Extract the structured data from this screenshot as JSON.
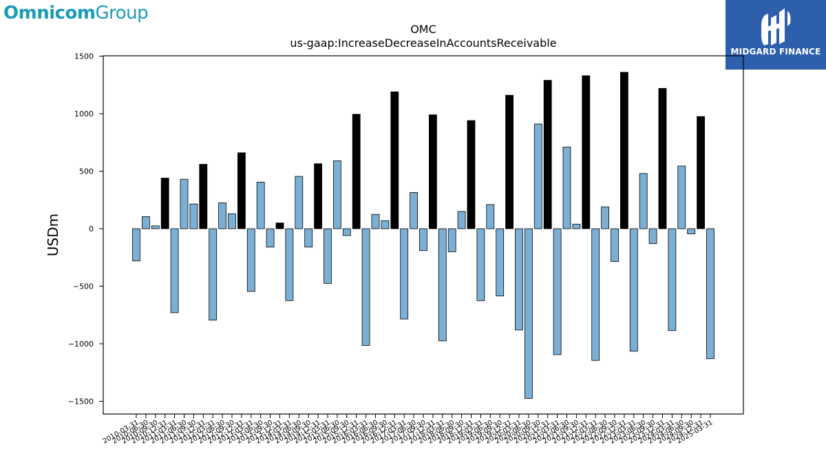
{
  "header": {
    "brand_left_strong": "Omnicom",
    "brand_left_light": "Group",
    "brand_right": "MIDGARD FINANCE",
    "brand_left_icon": "omnicom-wordmark",
    "brand_right_icon": "midgard-mark-icon"
  },
  "colors": {
    "bar_default": "#7bafd4",
    "bar_highlight": "#000000",
    "brand_left": "#1a9bb8",
    "brand_right_bg": "#2e5fad"
  },
  "chart_data": {
    "type": "bar",
    "title": "OMC",
    "subtitle": "us-gaap:IncreaseDecreaseInAccountsReceivable",
    "xlabel": "",
    "ylabel": "USDm",
    "ylim": [
      -1600,
      1500
    ],
    "yticks": [
      -1500,
      -1000,
      -500,
      0,
      500,
      1000,
      1500
    ],
    "ytick_labels": [
      "−1500",
      "−1000",
      "−500",
      "0",
      "500",
      "1000",
      "1500"
    ],
    "grid": false,
    "categories": [
      "2010-03-31",
      "2010-06-30",
      "2010-09-30",
      "2010-12-31",
      "2011-03-31",
      "2011-06-30",
      "2011-09-30",
      "2011-12-31",
      "2012-03-31",
      "2012-06-30",
      "2012-09-30",
      "2012-12-31",
      "2013-03-31",
      "2013-06-30",
      "2013-09-30",
      "2013-12-31",
      "2014-03-31",
      "2014-06-30",
      "2014-09-30",
      "2014-12-31",
      "2015-03-31",
      "2015-06-30",
      "2015-09-30",
      "2015-12-31",
      "2016-03-31",
      "2016-06-30",
      "2016-09-30",
      "2016-12-31",
      "2017-03-31",
      "2017-06-30",
      "2017-09-30",
      "2017-12-31",
      "2018-03-31",
      "2018-06-30",
      "2018-09-30",
      "2018-12-31",
      "2019-03-31",
      "2019-06-30",
      "2019-09-30",
      "2019-12-31",
      "2020-03-31",
      "2020-06-30",
      "2020-09-30",
      "2020-12-31",
      "2021-03-31",
      "2021-06-30",
      "2021-09-30",
      "2021-12-31",
      "2022-03-31",
      "2022-06-30",
      "2022-09-30",
      "2022-12-31",
      "2023-03-31",
      "2023-06-30",
      "2023-09-30",
      "2023-12-31",
      "2024-03-31",
      "2024-06-30",
      "2024-09-30",
      "2024-12-31",
      "2025-03-31"
    ],
    "values": [
      -280,
      105,
      25,
      440,
      -730,
      430,
      215,
      560,
      -795,
      225,
      130,
      660,
      -545,
      405,
      -160,
      50,
      -625,
      455,
      -160,
      565,
      -475,
      590,
      -60,
      995,
      -1015,
      125,
      70,
      1190,
      -785,
      315,
      -190,
      990,
      -975,
      -200,
      150,
      940,
      -625,
      210,
      -585,
      1160,
      -880,
      -1475,
      910,
      1290,
      -1095,
      710,
      40,
      1330,
      -1145,
      190,
      -285,
      1360,
      -1065,
      480,
      -130,
      1220,
      -885,
      545,
      -45,
      975,
      -1130
    ],
    "highlight_rule": "Q4 (December 31) bars are black; other quarters light blue"
  }
}
